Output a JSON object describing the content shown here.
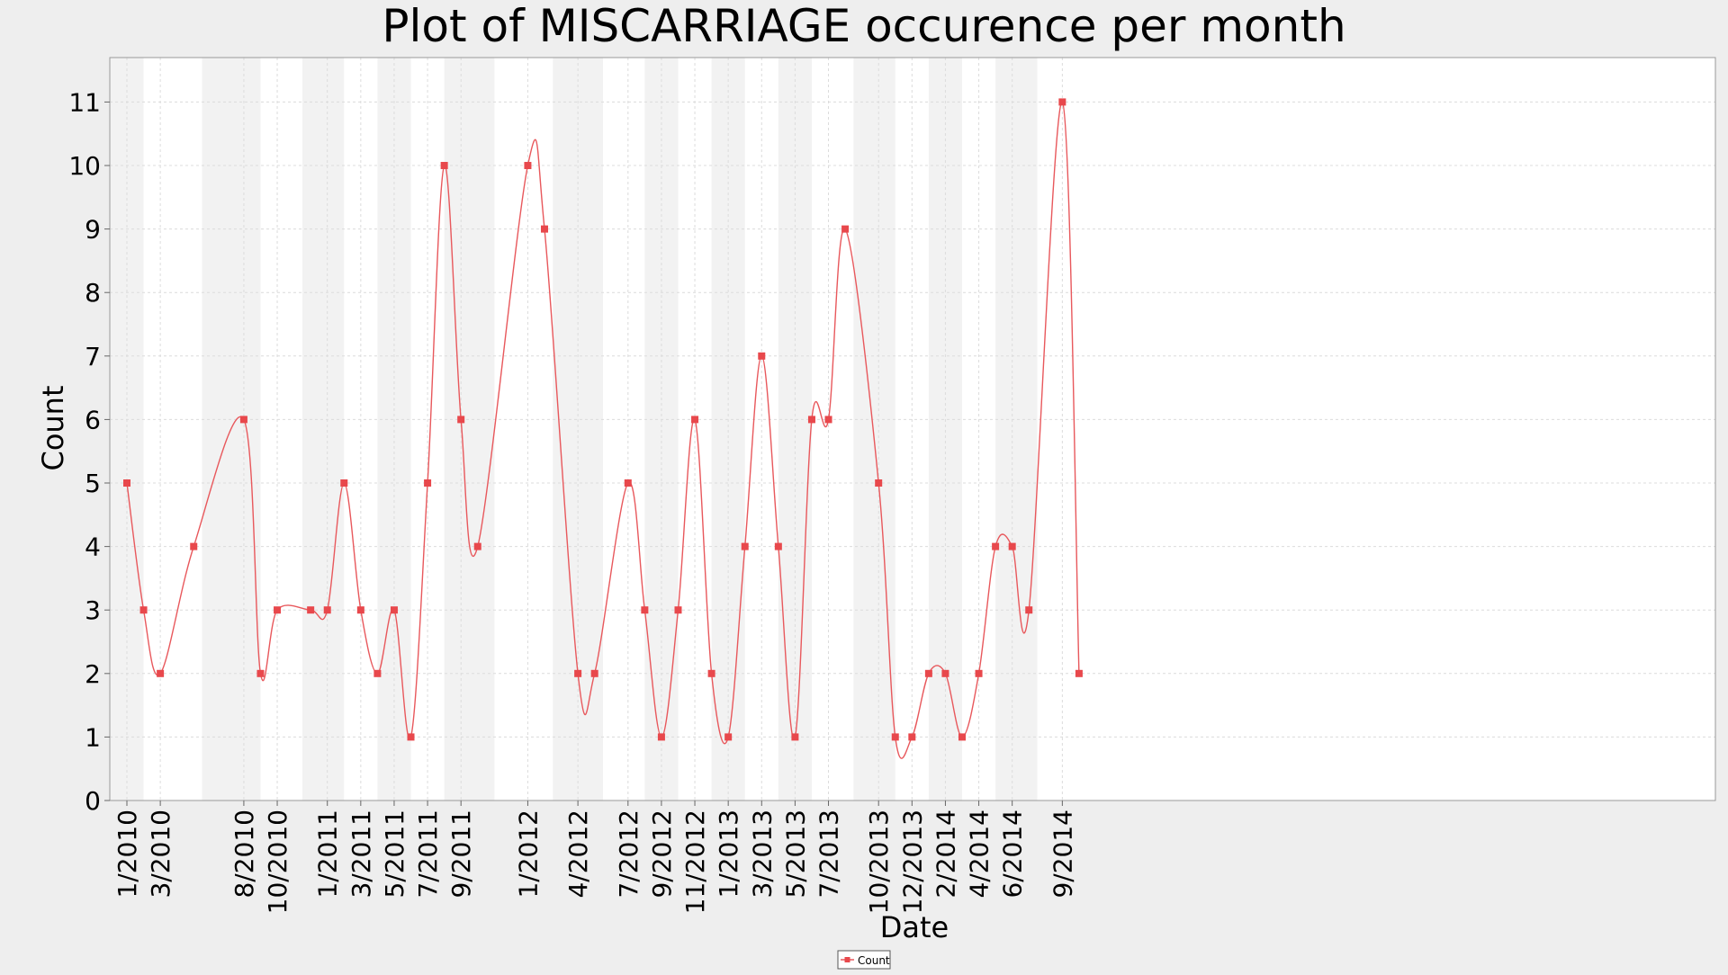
{
  "chart_data": {
    "type": "line",
    "title": "Plot of MISCARRIAGE occurence per month",
    "xlabel": "Date",
    "ylabel": "Count",
    "ylim": [
      0,
      11.7
    ],
    "y_ticks": [
      0,
      1,
      2,
      3,
      4,
      5,
      6,
      7,
      8,
      9,
      10,
      11
    ],
    "grid": true,
    "legend_position": "bottom-center",
    "line_color": "#e8585c",
    "marker_color": "#e8484c",
    "band_color": "#f2f2f2",
    "plot_background": "#ffffff",
    "page_background": "#eeeeee",
    "x_tick_labels": [
      "1/2010",
      "3/2010",
      "8/2010",
      "10/2010",
      "1/2011",
      "3/2011",
      "5/2011",
      "7/2011",
      "9/2011",
      "1/2012",
      "4/2012",
      "7/2012",
      "9/2012",
      "11/2012",
      "1/2013",
      "3/2013",
      "5/2013",
      "7/2013",
      "10/2013",
      "12/2013",
      "2/2014",
      "4/2014",
      "6/2014",
      "9/2014"
    ],
    "x_tick_points": [
      0,
      2,
      4,
      6,
      8,
      10,
      12,
      14,
      16,
      18,
      20,
      22,
      24,
      26,
      28,
      30,
      32,
      34,
      36,
      38,
      40,
      42,
      44,
      46
    ],
    "series": [
      {
        "name": "Count",
        "x": [
          "1/2010",
          "2/2010",
          "3/2010",
          "5/2010",
          "8/2010",
          "9/2010",
          "10/2010",
          "12/2010",
          "1/2011",
          "2/2011",
          "3/2011",
          "4/2011",
          "5/2011",
          "6/2011",
          "7/2011",
          "8/2011",
          "9/2011",
          "10/2011",
          "1/2012",
          "2/2012",
          "4/2012",
          "5/2012",
          "7/2012",
          "8/2012",
          "9/2012",
          "10/2012",
          "11/2012",
          "12/2012",
          "1/2013",
          "2/2013",
          "3/2013",
          "4/2013",
          "5/2013",
          "6/2013",
          "7/2013",
          "8/2013",
          "10/2013",
          "11/2013",
          "12/2013",
          "1/2014",
          "2/2014",
          "3/2014",
          "4/2014",
          "5/2014",
          "6/2014",
          "7/2014",
          "9/2014",
          "10/2014"
        ],
        "values": [
          5,
          3,
          2,
          4,
          6,
          2,
          3,
          3,
          3,
          5,
          3,
          2,
          3,
          1,
          5,
          10,
          6,
          4,
          10,
          9,
          2,
          2,
          5,
          3,
          1,
          3,
          6,
          2,
          1,
          4,
          7,
          4,
          1,
          6,
          6,
          9,
          5,
          1,
          1,
          2,
          2,
          1,
          2,
          4,
          4,
          3,
          11,
          2
        ]
      }
    ]
  }
}
